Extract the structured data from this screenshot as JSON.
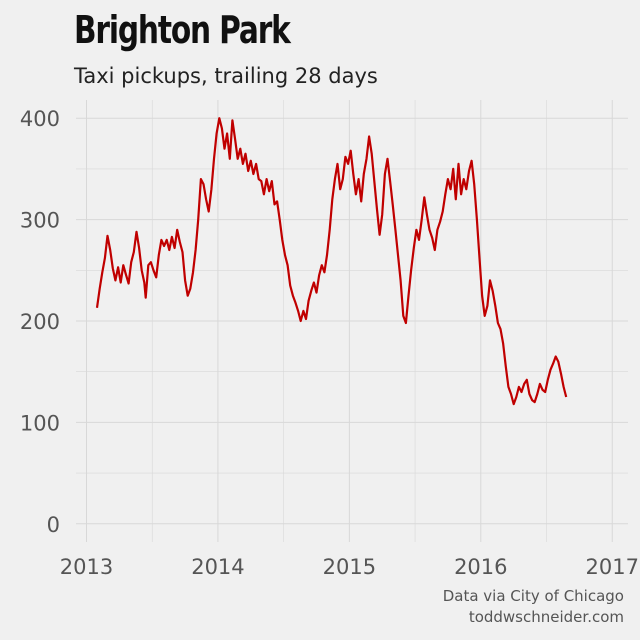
{
  "title": "Brighton Park",
  "subtitle": "Taxi pickups, trailing 28 days",
  "caption": {
    "line1": "Data via City of Chicago",
    "line2": "toddwschneider.com"
  },
  "colors": {
    "background": "#f0f0f0",
    "grid": "#d8d8d8",
    "line": "#c00000"
  },
  "chart_data": {
    "type": "line",
    "title": "Brighton Park",
    "subtitle": "Taxi pickups, trailing 28 days",
    "xlabel": "",
    "ylabel": "",
    "xlim": [
      2012.92,
      2017.12
    ],
    "ylim": [
      -18,
      418
    ],
    "x_ticks": [
      2013,
      2014,
      2015,
      2016,
      2017
    ],
    "x_tick_labels": [
      "2013",
      "2014",
      "2015",
      "2016",
      "2017"
    ],
    "y_ticks": [
      0,
      100,
      200,
      300,
      400
    ],
    "y_tick_labels": [
      "0",
      "100",
      "200",
      "300",
      "400"
    ],
    "grid": true,
    "legend": "none",
    "series": [
      {
        "color": "#c00000",
        "points": [
          [
            2013.08,
            213
          ],
          [
            2013.1,
            232
          ],
          [
            2013.12,
            248
          ],
          [
            2013.14,
            262
          ],
          [
            2013.16,
            284
          ],
          [
            2013.18,
            270
          ],
          [
            2013.2,
            252
          ],
          [
            2013.22,
            240
          ],
          [
            2013.24,
            253
          ],
          [
            2013.26,
            238
          ],
          [
            2013.28,
            255
          ],
          [
            2013.3,
            246
          ],
          [
            2013.32,
            237
          ],
          [
            2013.34,
            258
          ],
          [
            2013.36,
            268
          ],
          [
            2013.38,
            288
          ],
          [
            2013.4,
            272
          ],
          [
            2013.42,
            250
          ],
          [
            2013.44,
            238
          ],
          [
            2013.45,
            223
          ],
          [
            2013.47,
            255
          ],
          [
            2013.49,
            258
          ],
          [
            2013.51,
            250
          ],
          [
            2013.53,
            243
          ],
          [
            2013.55,
            265
          ],
          [
            2013.57,
            280
          ],
          [
            2013.59,
            274
          ],
          [
            2013.61,
            280
          ],
          [
            2013.63,
            270
          ],
          [
            2013.65,
            283
          ],
          [
            2013.67,
            272
          ],
          [
            2013.69,
            290
          ],
          [
            2013.71,
            278
          ],
          [
            2013.73,
            268
          ],
          [
            2013.75,
            240
          ],
          [
            2013.77,
            225
          ],
          [
            2013.79,
            232
          ],
          [
            2013.81,
            248
          ],
          [
            2013.83,
            270
          ],
          [
            2013.85,
            300
          ],
          [
            2013.87,
            340
          ],
          [
            2013.89,
            335
          ],
          [
            2013.91,
            320
          ],
          [
            2013.93,
            308
          ],
          [
            2013.95,
            330
          ],
          [
            2013.97,
            360
          ],
          [
            2013.99,
            385
          ],
          [
            2014.01,
            400
          ],
          [
            2014.03,
            390
          ],
          [
            2014.05,
            370
          ],
          [
            2014.07,
            385
          ],
          [
            2014.09,
            360
          ],
          [
            2014.11,
            398
          ],
          [
            2014.13,
            380
          ],
          [
            2014.15,
            360
          ],
          [
            2014.17,
            370
          ],
          [
            2014.19,
            355
          ],
          [
            2014.21,
            365
          ],
          [
            2014.23,
            348
          ],
          [
            2014.25,
            358
          ],
          [
            2014.27,
            345
          ],
          [
            2014.29,
            355
          ],
          [
            2014.31,
            340
          ],
          [
            2014.33,
            338
          ],
          [
            2014.35,
            325
          ],
          [
            2014.37,
            340
          ],
          [
            2014.39,
            328
          ],
          [
            2014.41,
            338
          ],
          [
            2014.43,
            315
          ],
          [
            2014.45,
            318
          ],
          [
            2014.47,
            300
          ],
          [
            2014.49,
            280
          ],
          [
            2014.51,
            265
          ],
          [
            2014.53,
            255
          ],
          [
            2014.55,
            235
          ],
          [
            2014.57,
            225
          ],
          [
            2014.59,
            218
          ],
          [
            2014.61,
            210
          ],
          [
            2014.63,
            200
          ],
          [
            2014.65,
            210
          ],
          [
            2014.67,
            202
          ],
          [
            2014.69,
            220
          ],
          [
            2014.71,
            230
          ],
          [
            2014.73,
            238
          ],
          [
            2014.75,
            228
          ],
          [
            2014.77,
            245
          ],
          [
            2014.79,
            255
          ],
          [
            2014.81,
            248
          ],
          [
            2014.83,
            265
          ],
          [
            2014.85,
            290
          ],
          [
            2014.87,
            320
          ],
          [
            2014.89,
            340
          ],
          [
            2014.91,
            355
          ],
          [
            2014.93,
            330
          ],
          [
            2014.95,
            340
          ],
          [
            2014.97,
            362
          ],
          [
            2014.99,
            355
          ],
          [
            2015.01,
            368
          ],
          [
            2015.03,
            345
          ],
          [
            2015.05,
            325
          ],
          [
            2015.07,
            340
          ],
          [
            2015.09,
            318
          ],
          [
            2015.11,
            345
          ],
          [
            2015.13,
            360
          ],
          [
            2015.15,
            382
          ],
          [
            2015.17,
            365
          ],
          [
            2015.19,
            338
          ],
          [
            2015.21,
            310
          ],
          [
            2015.23,
            285
          ],
          [
            2015.25,
            305
          ],
          [
            2015.27,
            345
          ],
          [
            2015.29,
            360
          ],
          [
            2015.31,
            338
          ],
          [
            2015.33,
            315
          ],
          [
            2015.35,
            290
          ],
          [
            2015.37,
            265
          ],
          [
            2015.39,
            240
          ],
          [
            2015.41,
            205
          ],
          [
            2015.43,
            198
          ],
          [
            2015.45,
            225
          ],
          [
            2015.47,
            250
          ],
          [
            2015.49,
            272
          ],
          [
            2015.51,
            290
          ],
          [
            2015.53,
            280
          ],
          [
            2015.55,
            300
          ],
          [
            2015.57,
            322
          ],
          [
            2015.59,
            305
          ],
          [
            2015.61,
            290
          ],
          [
            2015.63,
            282
          ],
          [
            2015.65,
            270
          ],
          [
            2015.67,
            290
          ],
          [
            2015.69,
            298
          ],
          [
            2015.71,
            308
          ],
          [
            2015.73,
            325
          ],
          [
            2015.75,
            340
          ],
          [
            2015.77,
            330
          ],
          [
            2015.79,
            350
          ],
          [
            2015.81,
            320
          ],
          [
            2015.83,
            355
          ],
          [
            2015.85,
            325
          ],
          [
            2015.87,
            340
          ],
          [
            2015.89,
            330
          ],
          [
            2015.91,
            348
          ],
          [
            2015.93,
            358
          ],
          [
            2015.95,
            335
          ],
          [
            2015.97,
            300
          ],
          [
            2015.99,
            262
          ],
          [
            2016.01,
            225
          ],
          [
            2016.03,
            205
          ],
          [
            2016.05,
            215
          ],
          [
            2016.07,
            240
          ],
          [
            2016.09,
            230
          ],
          [
            2016.11,
            215
          ],
          [
            2016.13,
            198
          ],
          [
            2016.15,
            192
          ],
          [
            2016.17,
            178
          ],
          [
            2016.19,
            155
          ],
          [
            2016.21,
            135
          ],
          [
            2016.23,
            128
          ],
          [
            2016.25,
            118
          ],
          [
            2016.27,
            125
          ],
          [
            2016.29,
            135
          ],
          [
            2016.31,
            130
          ],
          [
            2016.33,
            138
          ],
          [
            2016.35,
            142
          ],
          [
            2016.37,
            128
          ],
          [
            2016.39,
            122
          ],
          [
            2016.41,
            120
          ],
          [
            2016.43,
            128
          ],
          [
            2016.45,
            138
          ],
          [
            2016.47,
            132
          ],
          [
            2016.49,
            130
          ],
          [
            2016.51,
            142
          ],
          [
            2016.53,
            152
          ],
          [
            2016.55,
            158
          ],
          [
            2016.57,
            165
          ],
          [
            2016.59,
            160
          ],
          [
            2016.61,
            148
          ],
          [
            2016.63,
            135
          ],
          [
            2016.65,
            125
          ]
        ]
      }
    ]
  }
}
